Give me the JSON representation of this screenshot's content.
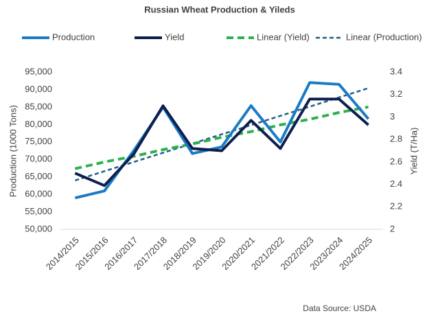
{
  "chart_data": {
    "type": "line",
    "title": "Russian Wheat Production  & Yileds",
    "y_label": "Production (1000 Tons)",
    "y2_label": "Yield (T/Ha)",
    "source": "Data Source: USDA",
    "categories": [
      "2014/2015",
      "2015/2016",
      "2016/2017",
      "2017/2018",
      "2018/2019",
      "2019/2020",
      "2020/2021",
      "2021/2022",
      "2022/2023",
      "2023/2024",
      "2024/2025"
    ],
    "series": [
      {
        "name": "Production",
        "color": "#1b7bc4",
        "style": "solid",
        "values": [
          59000,
          61000,
          72500,
          85000,
          71700,
          73600,
          85400,
          75000,
          92000,
          91500,
          81600
        ]
      },
      {
        "name": "Yield",
        "color": "#0e1f4e",
        "style": "solid",
        "axis": "y2",
        "values": [
          2.5,
          2.39,
          2.67,
          3.1,
          2.72,
          2.7,
          2.97,
          2.72,
          3.16,
          3.16,
          2.93
        ]
      },
      {
        "name": "Linear (Yield)",
        "color": "#2ab24d",
        "style": "dashed",
        "axis": "y2",
        "values": [
          2.54,
          2.6,
          2.65,
          2.71,
          2.76,
          2.82,
          2.87,
          2.93,
          2.98,
          3.04,
          3.09
        ]
      },
      {
        "name": "Linear (Production)",
        "color": "#1f5c86",
        "style": "dotted",
        "values": [
          64000,
          66640,
          69280,
          71920,
          74560,
          77200,
          79840,
          82480,
          85120,
          87760,
          90400
        ]
      }
    ],
    "ylim": [
      50000,
      95000
    ],
    "yticks": [
      {
        "value": 50000,
        "label": "50,000"
      },
      {
        "value": 55000,
        "label": "55,000"
      },
      {
        "value": 60000,
        "label": "60,000"
      },
      {
        "value": 65000,
        "label": "65,000"
      },
      {
        "value": 70000,
        "label": "70,000"
      },
      {
        "value": 75000,
        "label": "75,000"
      },
      {
        "value": 80000,
        "label": "80,000"
      },
      {
        "value": 85000,
        "label": "85,000"
      },
      {
        "value": 90000,
        "label": "90,000"
      },
      {
        "value": 95000,
        "label": "95,000"
      }
    ],
    "y2lim": [
      2,
      3.4
    ],
    "y2ticks": [
      2,
      2.2,
      2.4,
      2.6,
      2.8,
      3,
      3.2,
      3.4
    ],
    "grid": false,
    "legend": "top"
  }
}
